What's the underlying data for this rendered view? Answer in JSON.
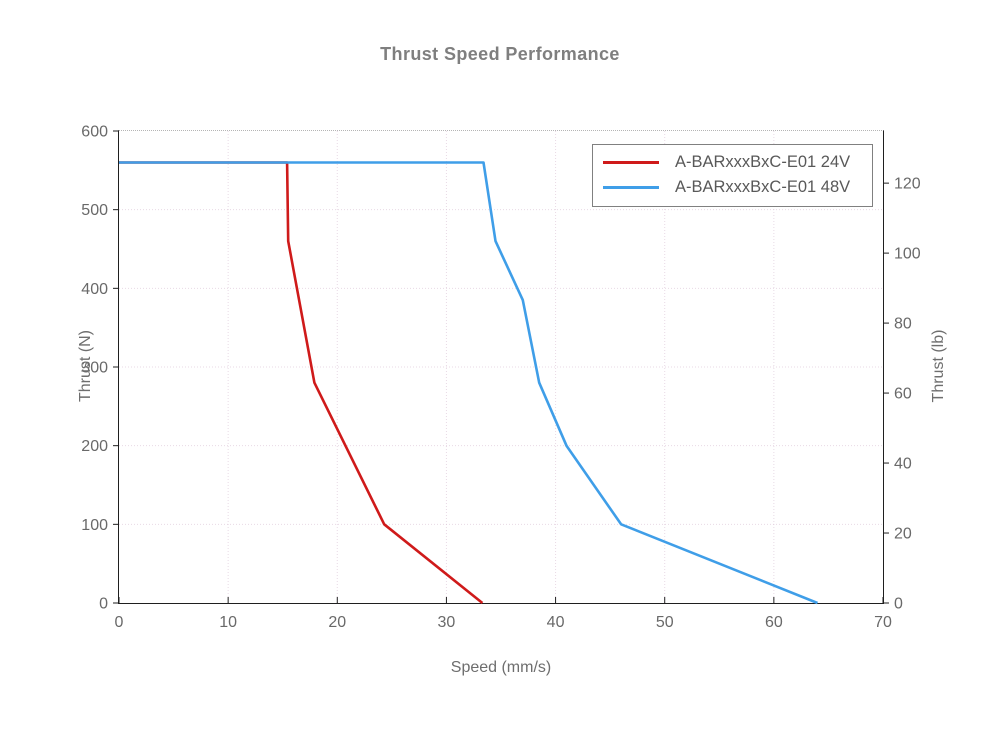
{
  "title": "Thrust Speed Performance",
  "colors": {
    "series_24v": "#cf1a1a",
    "series_48v": "#3f9ee8",
    "title_text": "#7f7f7f",
    "tick_text": "#696969",
    "grid": "#ddc6d8",
    "axis_line": "#1f1f1f"
  },
  "chart_data": {
    "type": "line",
    "title": "Thrust Speed Performance",
    "xlabel": "Speed (mm/s)",
    "ylabel_left": "Thrust (N)",
    "ylabel_right": "Thrust (lb)",
    "xlim": [
      0,
      70
    ],
    "ylim_left": [
      0,
      600
    ],
    "ylim_right": [
      0,
      134.9
    ],
    "x_ticks": [
      0,
      10,
      20,
      30,
      40,
      50,
      60,
      70
    ],
    "y_ticks_left": [
      0,
      100,
      200,
      300,
      400,
      500,
      600
    ],
    "y_ticks_right": [
      0,
      20,
      40,
      60,
      80,
      100,
      120
    ],
    "grid": true,
    "legend_position": "top-right",
    "series": [
      {
        "name": "A-BARxxxBxC-E01 24V",
        "color": "#cf1a1a",
        "points": [
          [
            0,
            560
          ],
          [
            15.4,
            560
          ],
          [
            15.5,
            460
          ],
          [
            17.9,
            280
          ],
          [
            24.3,
            100
          ],
          [
            33.3,
            0
          ]
        ]
      },
      {
        "name": "A-BARxxxBxC-E01 48V",
        "color": "#3f9ee8",
        "points": [
          [
            0,
            560
          ],
          [
            33.4,
            560
          ],
          [
            34.5,
            460
          ],
          [
            37,
            385
          ],
          [
            38.5,
            280
          ],
          [
            41,
            200
          ],
          [
            46,
            100
          ],
          [
            64,
            0
          ]
        ]
      }
    ]
  }
}
